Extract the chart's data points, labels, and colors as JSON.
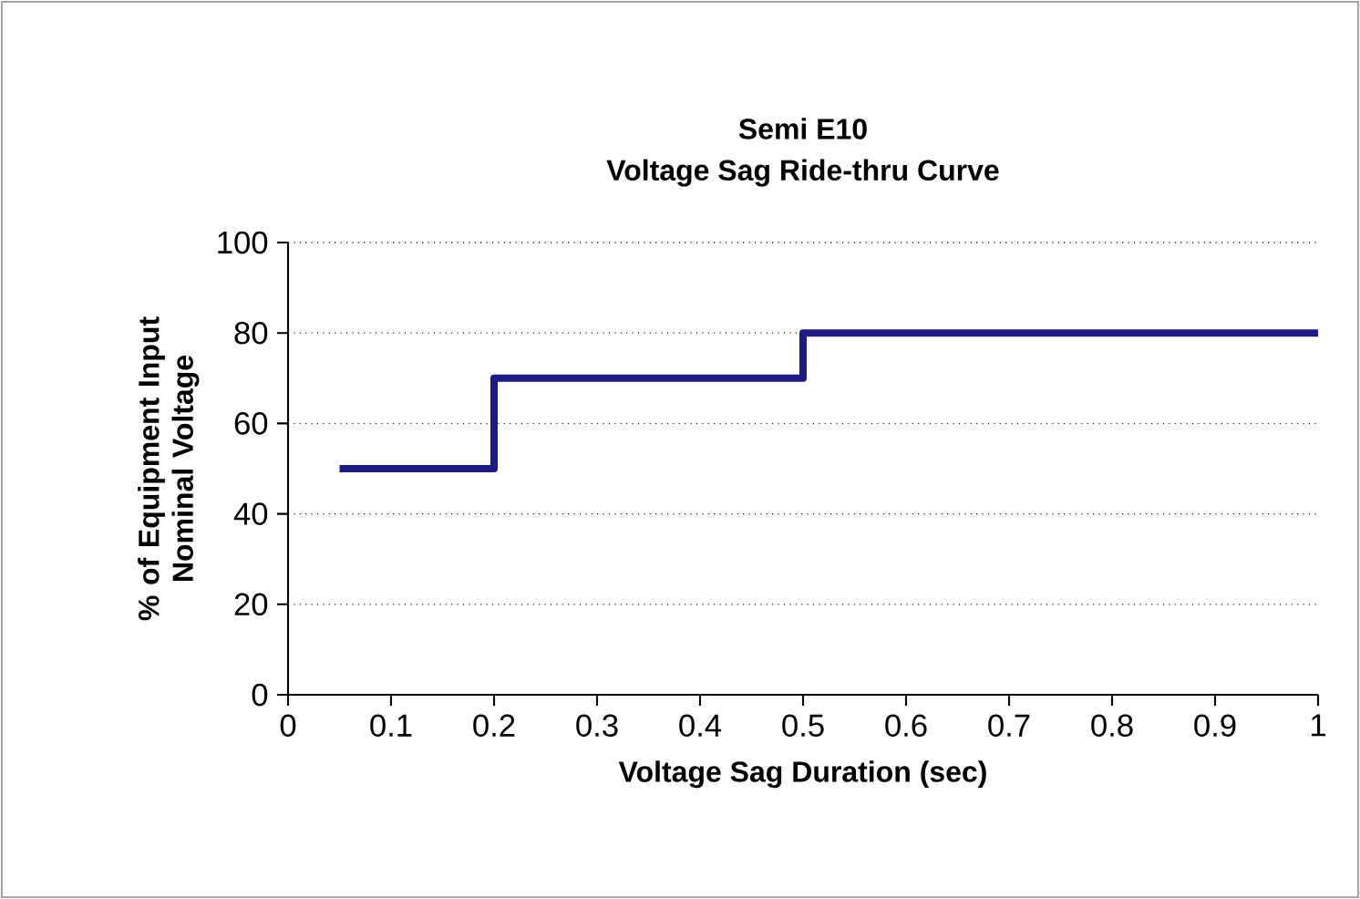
{
  "chart_data": {
    "type": "step",
    "title": "Semi E10",
    "subtitle": "Voltage Sag Ride-thru Curve",
    "xlabel": "Voltage Sag Duration (sec)",
    "ylabel": "% of Equipment Input Nominal Voltage",
    "x": [
      0.05,
      0.2,
      0.5,
      1
    ],
    "series": [
      {
        "color": "#1f1a80",
        "values": [
          50,
          70,
          80,
          80
        ]
      }
    ],
    "xlim": [
      0,
      1
    ],
    "ylim": [
      0,
      100
    ],
    "xticks": [
      0,
      0.1,
      0.2,
      0.3,
      0.4,
      0.5,
      0.6,
      0.7,
      0.8,
      0.9,
      1
    ],
    "yticks": [
      0,
      20,
      40,
      60,
      80,
      100
    ],
    "grid": "y",
    "marker": "none",
    "line_style": "solid"
  }
}
